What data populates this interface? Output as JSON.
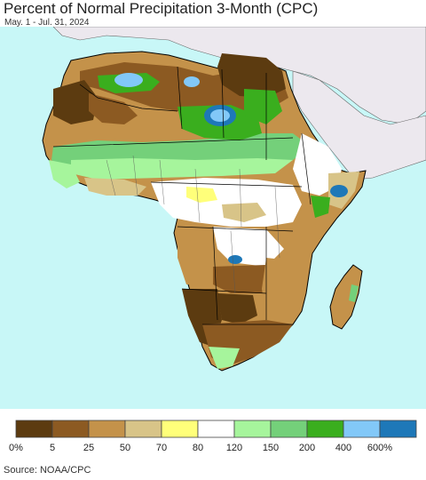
{
  "header": {
    "title": "Percent of Normal Precipitation 3-Month (CPC)",
    "subtitle": "May. 1 - Jul. 31, 2024"
  },
  "map": {
    "region": "Africa",
    "ocean_color": "#c8f7f7",
    "other_land_color": "#ece8ee",
    "border_color": "#000000"
  },
  "legend": {
    "bins": [
      {
        "color": "#5c3b10"
      },
      {
        "color": "#8c5a22"
      },
      {
        "color": "#c4924a"
      },
      {
        "color": "#d8c488"
      },
      {
        "color": "#ffff7a"
      },
      {
        "color": "#ffffff"
      },
      {
        "color": "#a6f59c"
      },
      {
        "color": "#74d07a"
      },
      {
        "color": "#3aae1e"
      },
      {
        "color": "#82c8f8"
      },
      {
        "color": "#1e78b8"
      }
    ],
    "labels": [
      "0%",
      "5",
      "25",
      "50",
      "70",
      "80",
      "120",
      "150",
      "200",
      "400",
      "600%"
    ]
  },
  "footer": {
    "source": "Source: NOAA/CPC"
  }
}
